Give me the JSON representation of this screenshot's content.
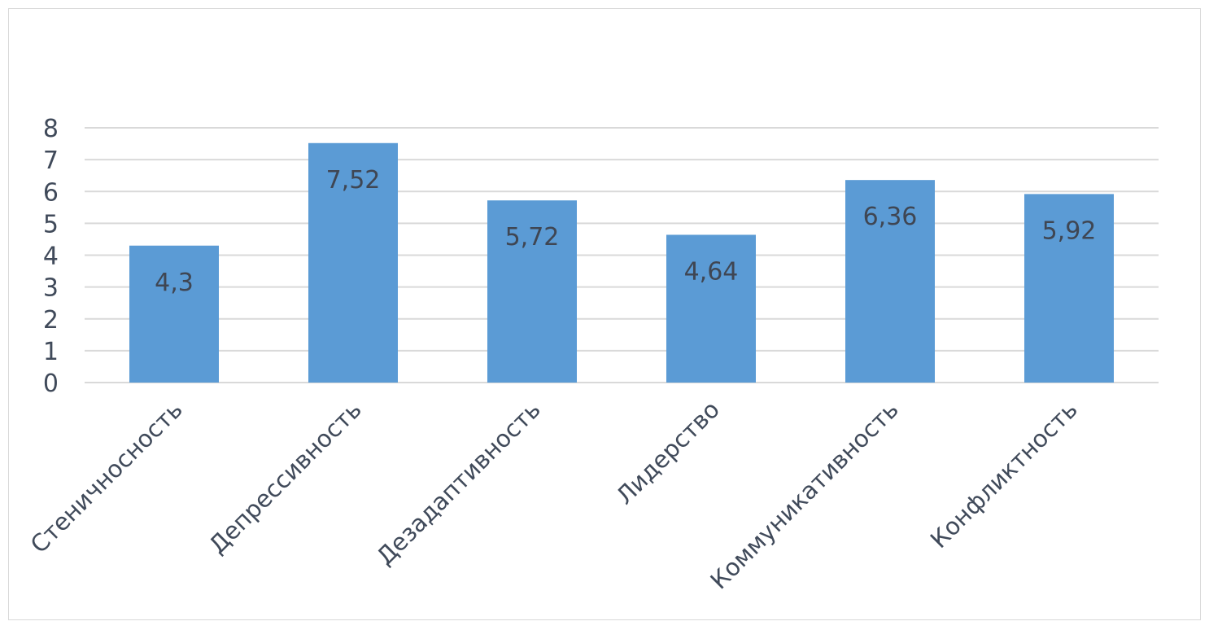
{
  "chart_data": {
    "type": "bar",
    "categories": [
      "Стеничносность",
      "Депрессивность",
      "Дезадаптивность",
      "Лидерство",
      "Коммуникативность",
      "Конфликтность"
    ],
    "values": [
      4.3,
      7.52,
      5.72,
      4.64,
      6.36,
      5.92
    ],
    "data_labels": [
      "4,3",
      "7,52",
      "5,72",
      "4,64",
      "6,36",
      "5,92"
    ],
    "y_ticks": [
      "0",
      "1",
      "2",
      "3",
      "4",
      "5",
      "6",
      "7",
      "8"
    ],
    "ylim": [
      0,
      8
    ],
    "grid": true,
    "legend": "none",
    "colors": {
      "bar": "#5b9bd5",
      "grid": "#d9d9d9",
      "text": "#404a5a"
    }
  }
}
